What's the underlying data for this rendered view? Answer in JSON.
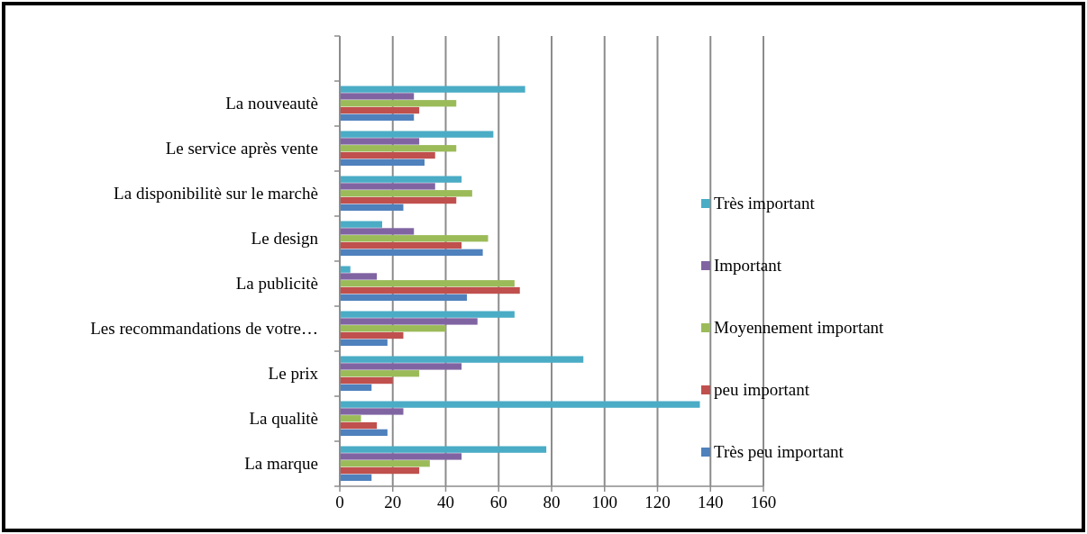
{
  "chart_data": {
    "type": "bar",
    "orientation": "horizontal",
    "categories": [
      null,
      "La nouveautè",
      "Le service après vente",
      "La disponibilitè sur le marchè",
      "Le design",
      "La publicitè",
      "Les recommandations de votre…",
      "Le prix",
      "La qualitè",
      "La marque"
    ],
    "series": [
      {
        "name": "Très peu important",
        "color": "#4f81bd",
        "values": [
          null,
          28,
          32,
          24,
          54,
          48,
          18,
          12,
          18,
          12
        ]
      },
      {
        "name": "peu important",
        "color": "#c0504d",
        "values": [
          null,
          30,
          36,
          44,
          46,
          68,
          24,
          20,
          14,
          30
        ]
      },
      {
        "name": "Moyennement important",
        "color": "#9bbb59",
        "values": [
          null,
          44,
          44,
          50,
          56,
          66,
          40,
          30,
          8,
          34
        ]
      },
      {
        "name": "Important",
        "color": "#8064a2",
        "values": [
          null,
          28,
          30,
          36,
          28,
          14,
          52,
          46,
          24,
          46
        ]
      },
      {
        "name": "Très important",
        "color": "#4bacc6",
        "values": [
          null,
          70,
          58,
          46,
          16,
          4,
          66,
          92,
          136,
          78
        ]
      }
    ],
    "xlim": [
      0,
      160
    ],
    "xticks": [
      0,
      20,
      40,
      60,
      80,
      100,
      120,
      140,
      160
    ],
    "grid": "x",
    "legend": "right"
  }
}
